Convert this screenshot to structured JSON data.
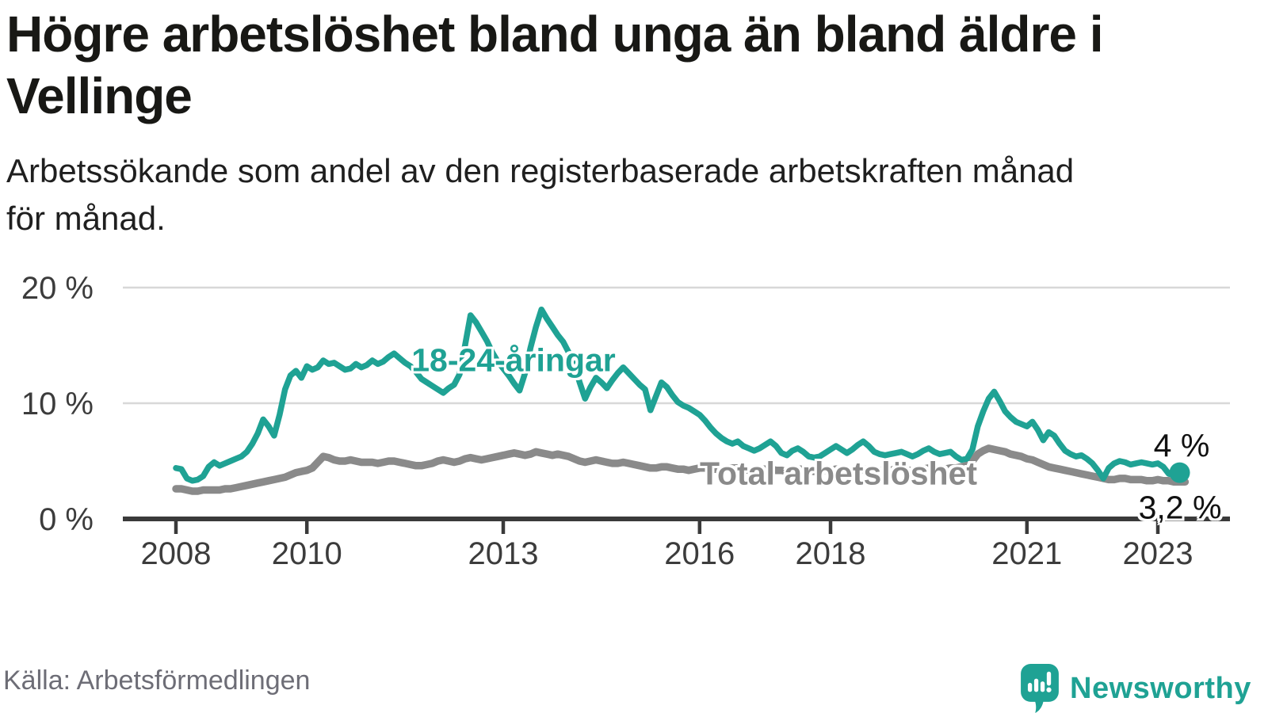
{
  "header": {
    "title_lines": [
      "Högre arbetslöshet bland unga än bland äldre i",
      "Vellinge"
    ],
    "subtitle_lines": [
      "Arbetssökande som andel av den registerbaserade arbetskraften månad",
      "för månad."
    ]
  },
  "chart_data": {
    "type": "line",
    "title": "Högre arbetslöshet bland unga än bland äldre i Vellinge",
    "xlabel": "",
    "ylabel": "Arbetssökande som andel av den registerbaserade arbetskraften",
    "grid": "horizontal-gridlines",
    "legend": "inline-series-labels",
    "ylim": [
      0,
      21.5
    ],
    "y_ticks": [
      {
        "value": 0,
        "label": "0 %"
      },
      {
        "value": 10,
        "label": "10 %"
      },
      {
        "value": 20,
        "label": "20 %"
      }
    ],
    "x_ticks": [
      {
        "year": 2008,
        "label": "2008"
      },
      {
        "year": 2010,
        "label": "2010"
      },
      {
        "year": 2013,
        "label": "2013"
      },
      {
        "year": 2016,
        "label": "2016"
      },
      {
        "year": 2018,
        "label": "2018"
      },
      {
        "year": 2021,
        "label": "2021"
      },
      {
        "year": 2023,
        "label": "2023"
      }
    ],
    "frequency": "monthly",
    "start_year": 2008,
    "start_month": 1,
    "series": [
      {
        "name": "18-24-åringar",
        "label_text": "18-24-åringar",
        "color": "#1fa294",
        "line_width": 7.5,
        "end_dot": true,
        "end_value_label": "4 %",
        "values": [
          4.4,
          4.3,
          3.5,
          3.3,
          3.4,
          3.7,
          4.5,
          4.9,
          4.6,
          4.8,
          5.0,
          5.2,
          5.4,
          5.8,
          6.5,
          7.4,
          8.6,
          8.0,
          7.2,
          9.0,
          11.2,
          12.4,
          12.8,
          12.2,
          13.2,
          12.9,
          13.1,
          13.7,
          13.4,
          13.5,
          13.2,
          12.9,
          13.0,
          13.4,
          13.1,
          13.3,
          13.7,
          13.4,
          13.6,
          14.0,
          14.3,
          13.9,
          13.5,
          13.2,
          12.7,
          12.1,
          11.8,
          11.5,
          11.2,
          10.9,
          11.3,
          11.6,
          12.5,
          15.0,
          17.6,
          17.0,
          16.2,
          15.4,
          14.4,
          13.6,
          13.0,
          12.4,
          11.7,
          11.1,
          12.6,
          14.8,
          16.6,
          18.1,
          17.3,
          16.6,
          15.9,
          15.3,
          14.4,
          13.4,
          11.8,
          10.4,
          11.4,
          12.2,
          11.8,
          11.3,
          12.0,
          12.6,
          13.1,
          12.6,
          12.1,
          11.6,
          11.2,
          9.4,
          10.6,
          11.8,
          11.4,
          10.7,
          10.1,
          9.8,
          9.6,
          9.3,
          9.0,
          8.5,
          7.9,
          7.4,
          7.0,
          6.7,
          6.5,
          6.7,
          6.3,
          6.1,
          5.9,
          6.1,
          6.4,
          6.7,
          6.3,
          5.7,
          5.5,
          5.9,
          6.1,
          5.8,
          5.4,
          5.3,
          5.4,
          5.7,
          6.0,
          6.3,
          6.0,
          5.7,
          6.0,
          6.4,
          6.7,
          6.3,
          5.8,
          5.6,
          5.5,
          5.6,
          5.7,
          5.8,
          5.6,
          5.4,
          5.6,
          5.9,
          6.1,
          5.8,
          5.6,
          5.7,
          5.8,
          5.4,
          5.1,
          5.2,
          6.0,
          8.0,
          9.3,
          10.4,
          11.0,
          10.2,
          9.3,
          8.8,
          8.4,
          8.2,
          8.0,
          8.4,
          7.7,
          6.8,
          7.5,
          7.2,
          6.5,
          5.9,
          5.6,
          5.4,
          5.5,
          5.2,
          4.8,
          4.2,
          3.5,
          4.4,
          4.8,
          5.0,
          4.9,
          4.7,
          4.8,
          4.9,
          4.8,
          4.7,
          4.8,
          4.5,
          3.9,
          3.8,
          4.0
        ]
      },
      {
        "name": "Total arbetslöshet",
        "label_text": "Total arbetslöshet",
        "color": "#8a8a8a",
        "line_width": 9.5,
        "end_dot": false,
        "end_value_label": "3,2 %",
        "values": [
          2.6,
          2.6,
          2.5,
          2.4,
          2.4,
          2.5,
          2.5,
          2.5,
          2.5,
          2.6,
          2.6,
          2.7,
          2.8,
          2.9,
          3.0,
          3.1,
          3.2,
          3.3,
          3.4,
          3.5,
          3.6,
          3.8,
          4.0,
          4.1,
          4.2,
          4.4,
          4.9,
          5.4,
          5.3,
          5.1,
          5.0,
          5.0,
          5.1,
          5.0,
          4.9,
          4.9,
          4.9,
          4.8,
          4.9,
          5.0,
          5.0,
          4.9,
          4.8,
          4.7,
          4.6,
          4.6,
          4.7,
          4.8,
          5.0,
          5.1,
          5.0,
          4.9,
          5.0,
          5.2,
          5.3,
          5.2,
          5.1,
          5.2,
          5.3,
          5.4,
          5.5,
          5.6,
          5.7,
          5.6,
          5.5,
          5.6,
          5.8,
          5.7,
          5.6,
          5.5,
          5.6,
          5.5,
          5.4,
          5.2,
          5.0,
          4.9,
          5.0,
          5.1,
          5.0,
          4.9,
          4.8,
          4.8,
          4.9,
          4.8,
          4.7,
          4.6,
          4.5,
          4.4,
          4.4,
          4.5,
          4.5,
          4.4,
          4.3,
          4.3,
          4.2,
          4.3,
          4.4,
          4.4,
          4.3,
          4.3,
          4.2,
          4.3,
          4.4,
          4.4,
          4.3,
          4.2,
          4.2,
          4.3,
          4.3,
          4.3,
          4.2,
          4.2,
          4.1,
          4.2,
          4.3,
          4.3,
          4.2,
          4.1,
          4.2,
          4.2,
          4.2,
          4.3,
          4.2,
          4.1,
          4.1,
          4.2,
          4.3,
          4.3,
          4.2,
          4.2,
          4.2,
          4.2,
          4.3,
          4.3,
          4.2,
          4.2,
          4.2,
          4.3,
          4.4,
          4.4,
          4.3,
          4.3,
          4.4,
          4.4,
          4.5,
          4.6,
          5.0,
          5.6,
          5.9,
          6.1,
          6.0,
          5.9,
          5.8,
          5.6,
          5.5,
          5.4,
          5.2,
          5.1,
          4.9,
          4.7,
          4.5,
          4.4,
          4.3,
          4.2,
          4.1,
          4.0,
          3.9,
          3.8,
          3.7,
          3.6,
          3.5,
          3.4,
          3.4,
          3.5,
          3.5,
          3.4,
          3.4,
          3.4,
          3.3,
          3.3,
          3.4,
          3.3,
          3.3,
          3.2,
          3.2,
          3.2
        ]
      }
    ]
  },
  "footer": {
    "source": "Källa: Arbetsförmedlingen",
    "logo_text": "Newsworthy"
  },
  "colors": {
    "teal": "#1fa294",
    "gray_line": "#8a8a8a",
    "gridline": "#d8d8d8",
    "axis": "#3a3a3a",
    "tick_label": "#3c3c3c",
    "title": "#181815",
    "source_text": "#6d6d76"
  }
}
